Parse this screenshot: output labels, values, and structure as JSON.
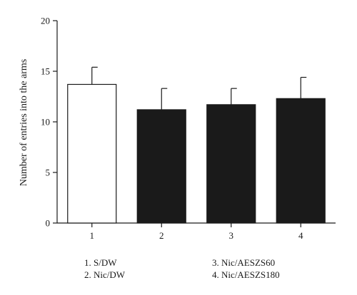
{
  "chart_data": {
    "type": "bar",
    "categories": [
      "1",
      "2",
      "3",
      "4"
    ],
    "values": [
      13.7,
      11.2,
      11.7,
      12.3
    ],
    "errors": [
      1.7,
      2.1,
      1.6,
      2.1
    ],
    "bar_fills": [
      "#ffffff",
      "#1a1a1a",
      "#1a1a1a",
      "#1a1a1a"
    ],
    "ylabel": "Number of entries into the arms",
    "xlabel": "",
    "ylim": [
      0,
      20
    ],
    "yticks": [
      "0",
      "5",
      "10",
      "15",
      "20"
    ],
    "ytick_values": [
      0,
      5,
      10,
      15,
      20
    ],
    "legend": [
      "1. S/DW",
      "2. Nic/DW",
      "3. Nic/AESZS60",
      "4. Nic/AESZS180"
    ],
    "legend_placement": "bottom",
    "grid": false
  }
}
